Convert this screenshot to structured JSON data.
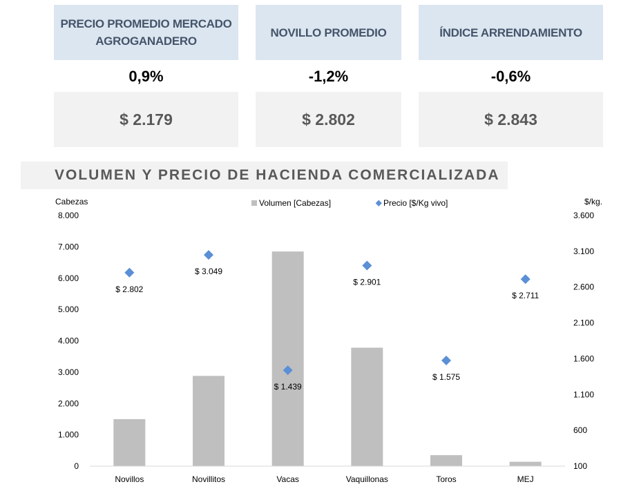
{
  "cards": [
    {
      "title": "PRECIO PROMEDIO MERCADO AGROGANADERO",
      "change": "0,9%",
      "price": "$ 2.179"
    },
    {
      "title": "NOVILLO PROMEDIO",
      "change": "-1,2%",
      "price": "$ 2.802"
    },
    {
      "title": "ÍNDICE ARRENDAMIENTO",
      "change": "-0,6%",
      "price": "$ 2.843"
    }
  ],
  "section_title": "VOLUMEN Y PRECIO DE HACIENDA COMERCIALIZADA",
  "colors": {
    "header_bg": "#dce6f0",
    "header_text": "#44546a",
    "price_bg": "#f2f2f2",
    "bar": "#bfbfbf",
    "marker": "#5b8fd6"
  },
  "chart_data": {
    "type": "bar",
    "categories": [
      "Novillos",
      "Novillitos",
      "Vacas",
      "Vaquillonas",
      "Toros",
      "MEJ"
    ],
    "series": [
      {
        "name": "Volumen [Cabezas]",
        "axis": "left",
        "type": "bar",
        "values": [
          1500,
          2880,
          6850,
          3780,
          350,
          140
        ]
      },
      {
        "name": "Precio [$/Kg vivo]",
        "axis": "right",
        "type": "scatter",
        "values": [
          2802,
          3049,
          1439,
          2901,
          1575,
          2711
        ],
        "labels": [
          "$ 2.802",
          "$ 3.049",
          "$ 1.439",
          "$ 2.901",
          "$ 1.575",
          "$ 2.711"
        ]
      }
    ],
    "ylabel": "Cabezas",
    "y2label": "$/kg.",
    "ylim": [
      0,
      8000
    ],
    "y2lim": [
      100,
      3600
    ],
    "yticks": [
      0,
      1000,
      2000,
      3000,
      4000,
      5000,
      6000,
      7000,
      8000
    ],
    "yticklabels": [
      "0",
      "1.000",
      "2.000",
      "3.000",
      "4.000",
      "5.000",
      "6.000",
      "7.000",
      "8.000"
    ],
    "y2ticks": [
      100,
      600,
      1100,
      1600,
      2100,
      2600,
      3100,
      3600
    ],
    "y2ticklabels": [
      "100",
      "600",
      "1.100",
      "1.600",
      "2.100",
      "2.600",
      "3.100",
      "3.600"
    ],
    "legend": [
      "Volumen [Cabezas]",
      "Precio [$/Kg vivo]"
    ],
    "legend_position": "top",
    "grid": false
  }
}
